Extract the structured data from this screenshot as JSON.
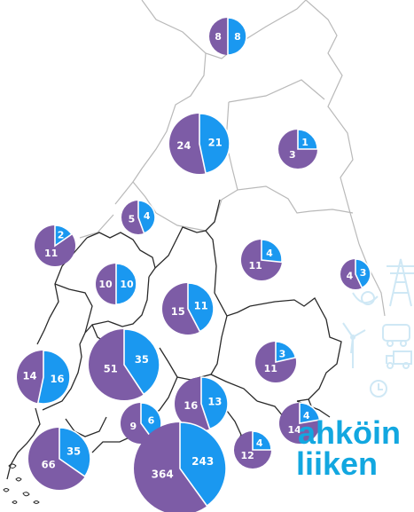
{
  "colors": {
    "purple": "#7d5ca6",
    "blue": "#1a98f0",
    "border_dark": "#2a2a2a",
    "border_light": "#b9b9b9",
    "brand": "#12a7e0",
    "brand_faint": "#cfe8f5"
  },
  "brand": {
    "line1": "ahköin",
    "line2": "liiken"
  },
  "icons": [
    "wind-turbine-icon",
    "power-pylon-icon",
    "truck-icon",
    "clock-icon",
    "bus-icon",
    "plug-icon"
  ],
  "regions": [
    {
      "id": "lappi-north",
      "purple": 8,
      "blue": 8
    },
    {
      "id": "lappi",
      "purple": 24,
      "blue": 21
    },
    {
      "id": "lappi-east",
      "purple": 3,
      "blue": 1
    },
    {
      "id": "keski-pohjanmaa",
      "purple": 5,
      "blue": 4
    },
    {
      "id": "pohjanmaa",
      "purple": 11,
      "blue": 2
    },
    {
      "id": "kainuu",
      "purple": 11,
      "blue": 4
    },
    {
      "id": "pohjois-karjala",
      "purple": 4,
      "blue": 3
    },
    {
      "id": "etela-pohjanmaa",
      "purple": 10,
      "blue": 10
    },
    {
      "id": "keski-suomi",
      "purple": 15,
      "blue": 11
    },
    {
      "id": "etela-savo",
      "purple": 11,
      "blue": 3
    },
    {
      "id": "satakunta",
      "purple": 14,
      "blue": 16
    },
    {
      "id": "pirkanmaa",
      "purple": 51,
      "blue": 35
    },
    {
      "id": "paijat-hame",
      "purple": 16,
      "blue": 13
    },
    {
      "id": "kymenlaakso",
      "purple": 14,
      "blue": 4
    },
    {
      "id": "kanta-hame",
      "purple": 9,
      "blue": 6
    },
    {
      "id": "varsinais-suomi",
      "purple": 66,
      "blue": 35
    },
    {
      "id": "uusimaa",
      "purple": 364,
      "blue": 243
    },
    {
      "id": "etela-karjala",
      "purple": 12,
      "blue": 4
    }
  ]
}
